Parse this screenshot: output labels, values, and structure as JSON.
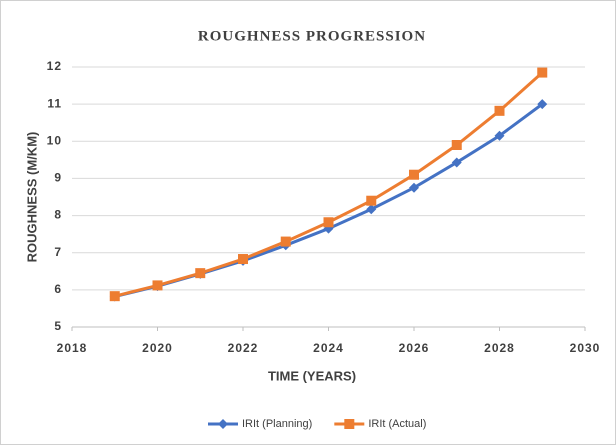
{
  "chart_data": {
    "type": "line",
    "title": "ROUGHNESS PROGRESSION",
    "xlabel": "TIME (YEARS)",
    "ylabel": "ROUGHNESS (M/KM)",
    "x": [
      2019,
      2020,
      2021,
      2022,
      2023,
      2024,
      2025,
      2026,
      2027,
      2028,
      2029
    ],
    "series": [
      {
        "name": "IRIt (Planning)",
        "color": "#4472c4",
        "marker": "diamond",
        "values": [
          5.82,
          6.1,
          6.43,
          6.78,
          7.2,
          7.65,
          8.17,
          8.75,
          9.43,
          10.15,
          11.0
        ]
      },
      {
        "name": "IRIt (Actual)",
        "color": "#ed7d31",
        "marker": "square",
        "values": [
          5.83,
          6.12,
          6.45,
          6.83,
          7.3,
          7.82,
          8.4,
          9.1,
          9.9,
          10.82,
          11.85
        ]
      }
    ],
    "xlim": [
      2018,
      2030
    ],
    "xticks": [
      2018,
      2020,
      2022,
      2024,
      2026,
      2028,
      2030
    ],
    "ylim": [
      5,
      12
    ],
    "yticks": [
      5,
      6,
      7,
      8,
      9,
      10,
      11,
      12
    ],
    "grid": true,
    "legend": "bottom"
  }
}
